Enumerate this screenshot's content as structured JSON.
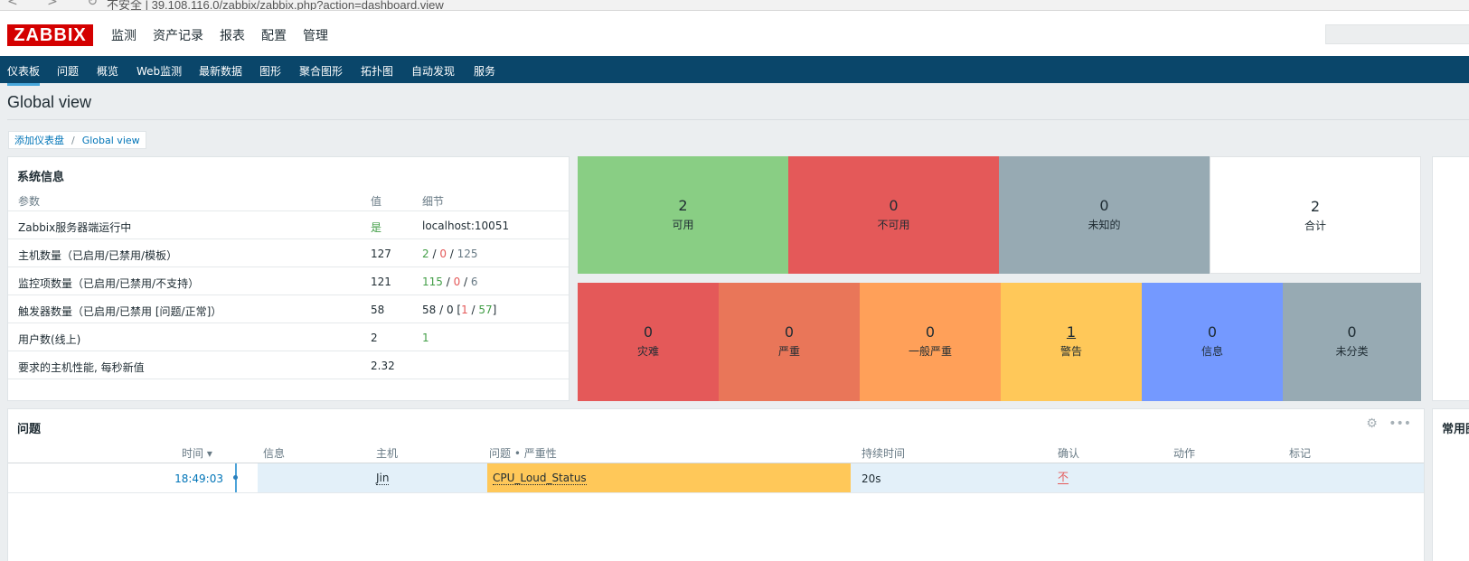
{
  "browser": {
    "url": "不安全 | 39.108.116.0/zabbix/zabbix.php?action=dashboard.view"
  },
  "header": {
    "logo": "ZABBIX",
    "menu": [
      "监测",
      "资产记录",
      "报表",
      "配置",
      "管理"
    ]
  },
  "submenu": [
    "仪表板",
    "问题",
    "概览",
    "Web监测",
    "最新数据",
    "图形",
    "聚合图形",
    "拓扑图",
    "自动发现",
    "服务"
  ],
  "page": {
    "title": "Global view"
  },
  "breadcrumb": {
    "parent": "添加仪表盘",
    "separator": "/",
    "current": "Global view"
  },
  "sysinfo": {
    "title": "系统信息",
    "columns": [
      "参数",
      "值",
      "细节"
    ],
    "rows": [
      {
        "param": "Zabbix服务器端运行中",
        "value": "是",
        "detail": "localhost:10051"
      },
      {
        "param": "主机数量（已启用/已禁用/模板）",
        "value": "127",
        "detail_parts": [
          "2",
          " / ",
          "0",
          " / ",
          "125"
        ]
      },
      {
        "param": "监控项数量（已启用/已禁用/不支持）",
        "value": "121",
        "detail_parts": [
          "115",
          " / ",
          "0",
          " / ",
          "6"
        ]
      },
      {
        "param": "触发器数量（已启用/已禁用 [问题/正常]）",
        "value": "58",
        "detail_parts": [
          "58 / 0 [",
          "1",
          " / ",
          "57",
          "]"
        ]
      },
      {
        "param": "用户数(线上)",
        "value": "2",
        "detail": "1"
      },
      {
        "param": "要求的主机性能, 每秒新值",
        "value": "2.32",
        "detail": ""
      }
    ]
  },
  "host_availability": [
    {
      "count": "2",
      "label": "可用",
      "color": "#89ce84"
    },
    {
      "count": "0",
      "label": "不可用",
      "color": "#e45959"
    },
    {
      "count": "0",
      "label": "未知的",
      "color": "#97aab3"
    },
    {
      "count": "2",
      "label": "合计",
      "color": "#ffffff"
    }
  ],
  "problems_by_severity": [
    {
      "count": "0",
      "label": "灾难",
      "color": "#e45959"
    },
    {
      "count": "0",
      "label": "严重",
      "color": "#e97659"
    },
    {
      "count": "0",
      "label": "一般严重",
      "color": "#ffa059"
    },
    {
      "count": "1",
      "label": "警告",
      "color": "#ffc859"
    },
    {
      "count": "0",
      "label": "信息",
      "color": "#7499ff"
    },
    {
      "count": "0",
      "label": "未分类",
      "color": "#97aab3"
    }
  ],
  "favorites": {
    "title": "常用图"
  },
  "problems": {
    "title": "问题",
    "columns": [
      "时间 ▾",
      "信息",
      "主机",
      "问题 • 严重性",
      "持续时间",
      "确认",
      "动作",
      "标记"
    ],
    "rows": [
      {
        "time": "18:49:03",
        "host": "Jin",
        "problem": "CPU_Loud_Status",
        "duration": "20s",
        "ack": "不"
      }
    ]
  }
}
